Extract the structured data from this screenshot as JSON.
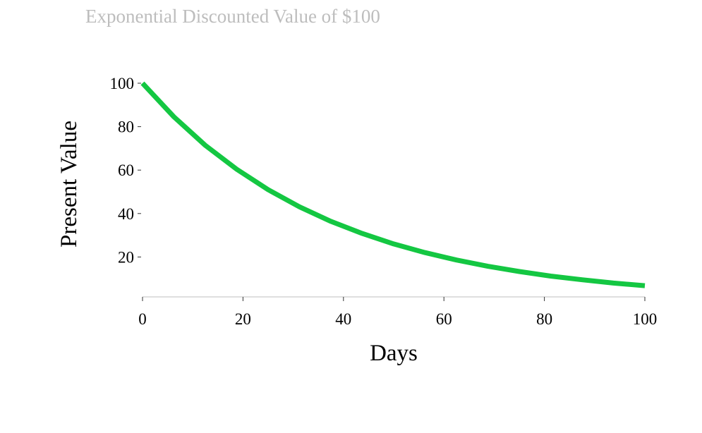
{
  "chart_data": {
    "type": "line",
    "title": "Exponential Discounted Value of $100",
    "xlabel": "Days",
    "ylabel": "Present Value",
    "xlim": [
      0,
      100
    ],
    "ylim": [
      0,
      100
    ],
    "x_ticks": [
      "0",
      "20",
      "40",
      "60",
      "80",
      "100"
    ],
    "y_ticks": [
      "20",
      "40",
      "60",
      "80",
      "100"
    ],
    "grid": false,
    "legend": "none",
    "colors": {
      "line": "#14c742",
      "title": "#bdbdbd",
      "axis": "#bfbfbf",
      "text": "#000000"
    },
    "series": [
      {
        "x": [
          0,
          6.25,
          12.5,
          18.75,
          25,
          31.25,
          37.5,
          43.75,
          50,
          56.25,
          62.5,
          68.75,
          75,
          81.25,
          87.5,
          93.75,
          100
        ],
        "values": [
          100,
          84.5,
          71.4,
          60.4,
          51.0,
          43.1,
          36.4,
          30.8,
          26.0,
          22.0,
          18.6,
          15.7,
          13.3,
          11.2,
          9.5,
          8.0,
          6.8
        ]
      }
    ]
  }
}
